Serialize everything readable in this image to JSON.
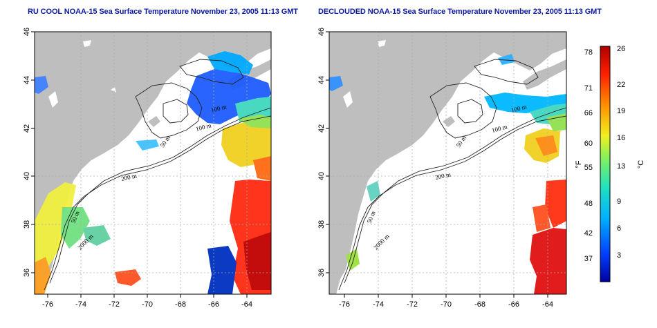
{
  "panels": [
    {
      "title": "RU COOL NOAA-15 Sea Surface Temperature November 23, 2005 11:13 GMT",
      "x_ticks": [
        "-76",
        "-74",
        "-72",
        "-70",
        "-68",
        "-66",
        "-64"
      ],
      "y_ticks": [
        "46",
        "44",
        "42",
        "40",
        "38",
        "36"
      ],
      "contour_labels": [
        "100 m",
        "100 m",
        "50 m",
        "200 m",
        "50 m",
        "2000 m"
      ]
    },
    {
      "title": "DECLOUDED NOAA-15 Sea Surface Temperature November 23, 2005 11:13 GMT",
      "x_ticks": [
        "-76",
        "-74",
        "-72",
        "-70",
        "-68",
        "-66",
        "-64"
      ],
      "y_ticks": [
        "46",
        "44",
        "42",
        "40",
        "38",
        "36"
      ],
      "contour_labels": [
        "100 m",
        "100 m",
        "50 m",
        "200 m",
        "50 m",
        "2000 m"
      ]
    }
  ],
  "colorbar": {
    "fahrenheit_ticks": [
      "78",
      "71",
      "66",
      "60",
      "55",
      "48",
      "42",
      "37"
    ],
    "celsius_ticks": [
      "26",
      "22",
      "19",
      "16",
      "13",
      "9",
      "6",
      "3"
    ],
    "label_f": "°F",
    "label_c": "°C",
    "colors": [
      "#0000a0",
      "#0040ff",
      "#00b0ff",
      "#20e0c0",
      "#80f060",
      "#f0f020",
      "#ff9000",
      "#ff2000",
      "#b00000"
    ]
  }
}
